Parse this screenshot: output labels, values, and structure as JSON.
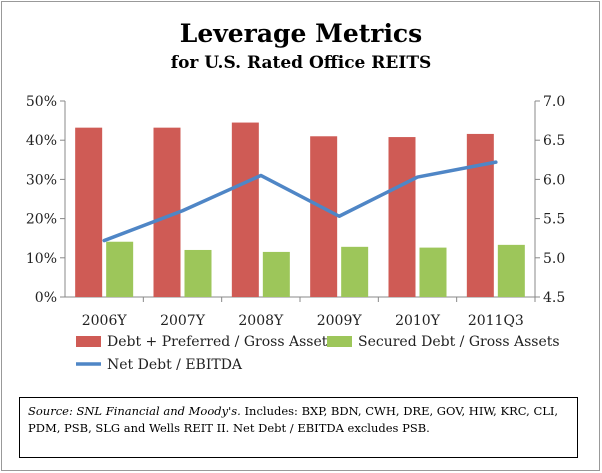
{
  "chart_data": {
    "type": "bar",
    "title": "Leverage Metrics",
    "subtitle": "for U.S. Rated Office REITS",
    "categories": [
      "2006Y",
      "2007Y",
      "2008Y",
      "2009Y",
      "2010Y",
      "2011Q3"
    ],
    "series": [
      {
        "name": "Debt + Preferred / Gross Assets",
        "type": "bar",
        "axis": "left",
        "color": "#cf5b55",
        "values": [
          0.432,
          0.432,
          0.445,
          0.41,
          0.408,
          0.416
        ]
      },
      {
        "name": "Secured Debt / Gross Assets",
        "type": "bar",
        "axis": "left",
        "color": "#9dc65a",
        "values": [
          0.141,
          0.12,
          0.115,
          0.128,
          0.126,
          0.133
        ]
      },
      {
        "name": "Net Debt / EBITDA",
        "type": "line",
        "axis": "right",
        "color": "#4f86c6",
        "values": [
          5.22,
          5.6,
          6.05,
          5.53,
          6.03,
          6.22
        ]
      }
    ],
    "y_left": {
      "ylim": [
        0,
        0.5
      ],
      "ticks": [
        "0%",
        "10%",
        "20%",
        "30%",
        "40%",
        "50%"
      ]
    },
    "y_right": {
      "ylim": [
        4.5,
        7.0
      ],
      "ticks": [
        "4.5",
        "5.0",
        "5.5",
        "6.0",
        "6.5",
        "7.0"
      ]
    },
    "grid": false,
    "legend": "bottom"
  },
  "source": {
    "label": "Source: SNL Financial and Moody's.",
    "text": " Includes: BXP, BDN, CWH, DRE, GOV, HIW, KRC, CLI, PDM, PSB, SLG and Wells REIT II. Net Debt / EBITDA excludes PSB."
  }
}
